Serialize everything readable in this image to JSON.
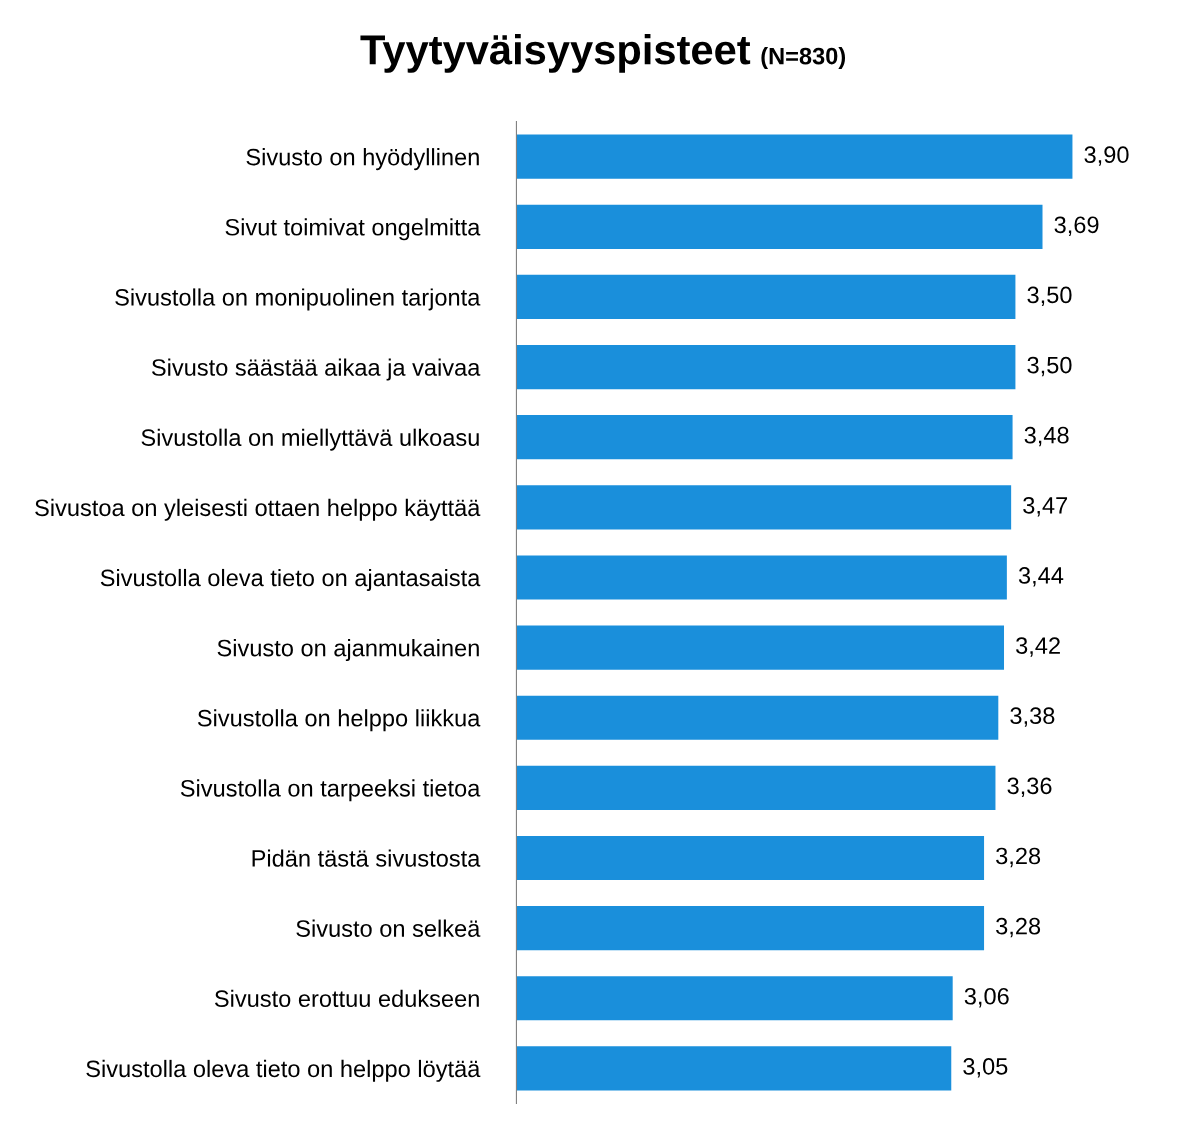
{
  "chart_data": {
    "type": "bar",
    "orientation": "horizontal",
    "title": "Tyytyväisyyspisteet",
    "subtitle": "(N=830)",
    "categories": [
      "Sivusto on hyödyllinen",
      "Sivut toimivat ongelmitta",
      "Sivustolla on monipuolinen tarjonta",
      "Sivusto säästää aikaa ja vaivaa",
      "Sivustolla on miellyttävä ulkoasu",
      "Sivustoa on yleisesti ottaen helppo käyttää",
      "Sivustolla oleva tieto on ajantasaista",
      "Sivusto on ajanmukainen",
      "Sivustolla on helppo liikkua",
      "Sivustolla on tarpeeksi tietoa",
      "Pidän tästä sivustosta",
      "Sivusto on selkeä",
      "Sivusto erottuu edukseen",
      "Sivustolla oleva tieto on helppo löytää"
    ],
    "values": [
      3.9,
      3.69,
      3.5,
      3.5,
      3.48,
      3.47,
      3.44,
      3.42,
      3.38,
      3.36,
      3.28,
      3.28,
      3.06,
      3.05
    ],
    "value_labels": [
      "3,90",
      "3,69",
      "3,50",
      "3,50",
      "3,48",
      "3,47",
      "3,44",
      "3,42",
      "3,38",
      "3,36",
      "3,28",
      "3,28",
      "3,06",
      "3,05"
    ],
    "color": "#1a8fdb",
    "tick_labels": "y",
    "grid": false,
    "legend": false
  }
}
